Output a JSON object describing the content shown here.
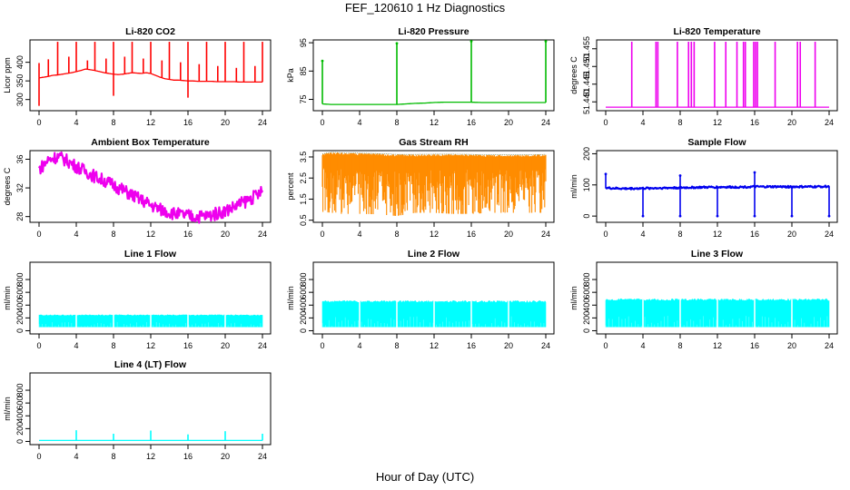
{
  "page": {
    "title": "FEF_120610  1 Hz Diagnostics",
    "xlabel": "Hour of Day (UTC)"
  },
  "chart_data": [
    {
      "type": "line",
      "title": "Li-820 CO2",
      "ylabel": "Licor ppm",
      "color": "#ff0000",
      "xlim": [
        0,
        24
      ],
      "xticks": [
        0,
        4,
        8,
        12,
        16,
        20,
        24
      ],
      "ylim": [
        270,
        460
      ],
      "yticks": [
        300,
        350,
        400
      ],
      "series": [
        {
          "x": [
            0,
            0.5,
            1,
            1.5,
            2,
            2.5,
            3,
            3.5,
            4,
            4.5,
            5,
            5.5,
            6,
            6.5,
            7,
            7.5,
            8,
            8.5,
            9,
            9.5,
            10,
            10.5,
            11,
            11.5,
            12,
            12.5,
            13,
            13.5,
            14,
            14.5,
            15,
            15.5,
            16,
            16.5,
            17,
            17.5,
            18,
            18.5,
            19,
            19.5,
            20,
            20.5,
            21,
            21.5,
            22,
            22.5,
            23,
            23.5,
            24
          ],
          "y": [
            358,
            360,
            362,
            365,
            366,
            368,
            370,
            372,
            375,
            378,
            382,
            380,
            378,
            375,
            372,
            370,
            368,
            367,
            368,
            370,
            372,
            371,
            370,
            372,
            370,
            365,
            360,
            356,
            354,
            352,
            352,
            351,
            350,
            350,
            349,
            349,
            349,
            349,
            348,
            348,
            348,
            348,
            348,
            347,
            347,
            347,
            347,
            347,
            347
          ]
        }
      ],
      "spikes": [
        [
          0,
          398
        ],
        [
          0,
          283
        ],
        [
          1,
          408
        ],
        [
          2,
          455
        ],
        [
          3.2,
          415
        ],
        [
          4,
          455
        ],
        [
          5.2,
          405
        ],
        [
          6,
          455
        ],
        [
          7.2,
          410
        ],
        [
          8,
          455
        ],
        [
          8,
          310
        ],
        [
          9.2,
          415
        ],
        [
          10,
          455
        ],
        [
          11.2,
          410
        ],
        [
          12,
          455
        ],
        [
          13.2,
          405
        ],
        [
          14,
          455
        ],
        [
          15.2,
          400
        ],
        [
          16,
          455
        ],
        [
          16,
          305
        ],
        [
          17.2,
          395
        ],
        [
          18,
          455
        ],
        [
          19.2,
          390
        ],
        [
          20,
          455
        ],
        [
          21.2,
          385
        ],
        [
          22,
          455
        ],
        [
          23.2,
          390
        ],
        [
          24,
          455
        ]
      ]
    },
    {
      "type": "line",
      "title": "Li-820 Pressure",
      "ylabel": "kPa",
      "color": "#00bb00",
      "xlim": [
        0,
        24
      ],
      "xticks": [
        0,
        4,
        8,
        12,
        16,
        20,
        24
      ],
      "ylim": [
        71,
        96
      ],
      "yticks": [
        75,
        85,
        95
      ],
      "series": [
        {
          "x": [
            0,
            1,
            2,
            3,
            4,
            5,
            6,
            7,
            8,
            9,
            10,
            11,
            12,
            13,
            14,
            15,
            16,
            17,
            18,
            19,
            20,
            21,
            22,
            23,
            24
          ],
          "y": [
            73.4,
            73.2,
            73.2,
            73.2,
            73.2,
            73.2,
            73.2,
            73.2,
            73.2,
            73.4,
            73.6,
            73.7,
            73.9,
            74.0,
            74.0,
            74.0,
            74.0,
            73.9,
            73.9,
            73.9,
            73.9,
            73.9,
            73.9,
            73.9,
            73.9
          ]
        }
      ],
      "spikes": [
        [
          0,
          88.6
        ],
        [
          8,
          94.8
        ],
        [
          16,
          95.5
        ],
        [
          24,
          95.5
        ]
      ]
    },
    {
      "type": "line",
      "title": "Li-820 Temperature",
      "ylabel": "degrees C",
      "color": "#ee00ee",
      "xlim": [
        0,
        24
      ],
      "xticks": [
        0,
        4,
        8,
        12,
        16,
        20,
        24
      ],
      "ylim": [
        51.4375,
        51.4575
      ],
      "yticks": [
        51.44,
        51.445,
        51.45,
        51.455
      ],
      "ytick_labels": [
        "51.440",
        "51.445",
        "51.450",
        "51.455"
      ],
      "series": [
        {
          "x": [
            0,
            24
          ],
          "y": [
            51.4385,
            51.4385
          ]
        }
      ],
      "spikes": [
        [
          2.8,
          51.457
        ],
        [
          5.4,
          51.457
        ],
        [
          5.6,
          51.457
        ],
        [
          7.7,
          51.457
        ],
        [
          8.9,
          51.457
        ],
        [
          9.2,
          51.457
        ],
        [
          9.5,
          51.457
        ],
        [
          11.7,
          51.457
        ],
        [
          12.9,
          51.457
        ],
        [
          14.1,
          51.457
        ],
        [
          14.8,
          51.457
        ],
        [
          15.0,
          51.457
        ],
        [
          15.9,
          51.457
        ],
        [
          16.1,
          51.457
        ],
        [
          16.3,
          51.457
        ],
        [
          18.2,
          51.457
        ],
        [
          20.6,
          51.457
        ],
        [
          20.9,
          51.457
        ],
        [
          22.5,
          51.457
        ]
      ]
    },
    {
      "type": "line",
      "title": "Ambient Box Temperature",
      "ylabel": "degrees C",
      "color": "#ee00ee",
      "band": 0.9,
      "xlim": [
        0,
        24
      ],
      "xticks": [
        0,
        4,
        8,
        12,
        16,
        20,
        24
      ],
      "ylim": [
        27.2,
        37.2
      ],
      "yticks": [
        28,
        32,
        36
      ],
      "series": [
        {
          "x": [
            0,
            1,
            2,
            3,
            4,
            5,
            6,
            7,
            8,
            9,
            10,
            11,
            12,
            13,
            14,
            15,
            16,
            17,
            18,
            19,
            20,
            21,
            22,
            23,
            24
          ],
          "y": [
            34.6,
            35.9,
            36.4,
            35.8,
            35.0,
            34.3,
            33.6,
            33.0,
            32.4,
            31.7,
            31.0,
            30.3,
            29.6,
            29.0,
            28.6,
            28.3,
            28.1,
            28.0,
            28.1,
            28.4,
            28.8,
            29.4,
            30.0,
            30.7,
            31.5
          ]
        }
      ]
    },
    {
      "type": "scatter",
      "title": "Gas Stream RH",
      "ylabel": "percent",
      "color": "#ff8c00",
      "edge_color": "#556b2f",
      "xlim": [
        0,
        24
      ],
      "xticks": [
        0,
        4,
        8,
        12,
        16,
        20,
        24
      ],
      "ylim": [
        0.4,
        3.8
      ],
      "yticks": [
        0.5,
        1.5,
        2.5,
        3.5
      ],
      "envelope": {
        "x": [
          0,
          1,
          2,
          4,
          6,
          8,
          10,
          12,
          14,
          16,
          18,
          20,
          22,
          24
        ],
        "upper": [
          3.65,
          3.72,
          3.7,
          3.68,
          3.66,
          3.62,
          3.62,
          3.63,
          3.63,
          3.62,
          3.6,
          3.6,
          3.6,
          3.62
        ],
        "lower": [
          0.9,
          0.85,
          0.8,
          0.8,
          0.78,
          0.7,
          0.85,
          0.85,
          0.8,
          0.8,
          0.85,
          0.85,
          0.85,
          0.85
        ]
      }
    },
    {
      "type": "line",
      "title": "Sample Flow",
      "ylabel": "ml/min",
      "color": "#0000ee",
      "band": 3,
      "xlim": [
        0,
        24
      ],
      "xticks": [
        0,
        4,
        8,
        12,
        16,
        20,
        24
      ],
      "ylim": [
        -20,
        210
      ],
      "yticks": [
        0,
        100,
        200
      ],
      "series": [
        {
          "x": [
            0,
            2,
            4,
            6,
            8,
            10,
            12,
            14,
            16,
            18,
            20,
            22,
            24
          ],
          "y": [
            90,
            88,
            89,
            90,
            91,
            92,
            93,
            93,
            94,
            94,
            94,
            94,
            95
          ]
        }
      ],
      "spikes": [
        [
          0,
          135
        ],
        [
          4,
          0
        ],
        [
          8,
          0
        ],
        [
          8,
          130
        ],
        [
          12,
          0
        ],
        [
          16,
          0
        ],
        [
          16,
          140
        ],
        [
          20,
          0
        ],
        [
          24,
          0
        ]
      ]
    },
    {
      "type": "area",
      "title": "Line 1 Flow",
      "ylabel": "ml/min",
      "color": "#00ffff",
      "xlim": [
        0,
        24
      ],
      "xticks": [
        0,
        4,
        8,
        12,
        16,
        20,
        24
      ],
      "ylim": [
        -50,
        1070
      ],
      "yticks": [
        0,
        200,
        400,
        600,
        800
      ],
      "fill_range": [
        60,
        250
      ],
      "gaps": [
        4,
        8,
        12,
        16,
        20
      ]
    },
    {
      "type": "area",
      "title": "Line 2 Flow",
      "ylabel": "ml/min",
      "color": "#00ffff",
      "xlim": [
        0,
        24
      ],
      "xticks": [
        0,
        4,
        8,
        12,
        16,
        20,
        24
      ],
      "ylim": [
        -50,
        1070
      ],
      "yticks": [
        0,
        200,
        400,
        600,
        800
      ],
      "fill_range": [
        60,
        470
      ],
      "gaps": [
        4,
        8,
        12,
        16,
        20
      ]
    },
    {
      "type": "area",
      "title": "Line 3 Flow",
      "ylabel": "ml/min",
      "color": "#00ffff",
      "xlim": [
        0,
        24
      ],
      "xticks": [
        0,
        4,
        8,
        12,
        16,
        20,
        24
      ],
      "ylim": [
        -50,
        1070
      ],
      "yticks": [
        0,
        200,
        400,
        600,
        800
      ],
      "fill_range": [
        60,
        500
      ],
      "gaps": [
        4,
        8,
        12,
        16,
        20
      ]
    },
    {
      "type": "line",
      "title": "Line 4 (LT) Flow",
      "ylabel": "ml/min",
      "color": "#00ffff",
      "xlim": [
        0,
        24
      ],
      "xticks": [
        0,
        4,
        8,
        12,
        16,
        20,
        24
      ],
      "ylim": [
        -50,
        1070
      ],
      "yticks": [
        0,
        200,
        400,
        600,
        800
      ],
      "series": [
        {
          "x": [
            0,
            24
          ],
          "y": [
            15,
            15
          ]
        }
      ],
      "spikes": [
        [
          4,
          175
        ],
        [
          8,
          120
        ],
        [
          12,
          170
        ],
        [
          16,
          110
        ],
        [
          20,
          160
        ],
        [
          24,
          120
        ]
      ]
    }
  ]
}
